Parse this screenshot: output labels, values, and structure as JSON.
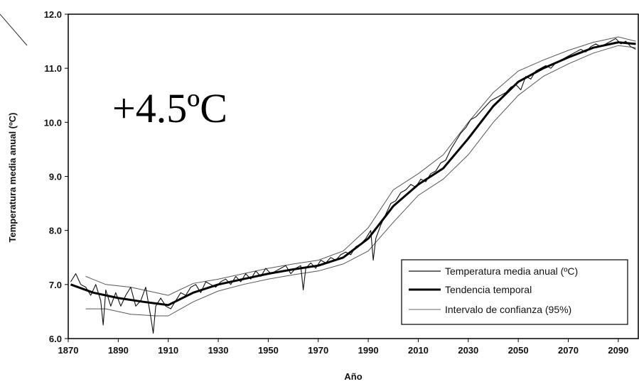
{
  "chart_data": {
    "type": "line",
    "xlabel": "Año",
    "ylabel": "Temperatura media anual (ºC)",
    "annotation": "+4.5ºC",
    "xlim": [
      1870,
      2098
    ],
    "ylim": [
      6.0,
      12.0
    ],
    "x_ticks": [
      1870,
      1890,
      1910,
      1930,
      1950,
      1970,
      1990,
      2010,
      2030,
      2050,
      2070,
      2090
    ],
    "y_ticks": [
      "6.0",
      "7.0",
      "8.0",
      "9.0",
      "10.0",
      "11.0",
      "12.0"
    ],
    "grid": false,
    "legend_position": "bottom-right",
    "series": [
      {
        "name": "Temperatura media anual (ºC)",
        "style": "annual",
        "color": "#111111",
        "x": [
          1871,
          1873,
          1875,
          1877,
          1879,
          1881,
          1883,
          1884,
          1885,
          1887,
          1889,
          1891,
          1893,
          1895,
          1897,
          1899,
          1901,
          1903,
          1904,
          1905,
          1907,
          1909,
          1911,
          1913,
          1915,
          1917,
          1919,
          1921,
          1923,
          1925,
          1927,
          1929,
          1931,
          1933,
          1935,
          1937,
          1939,
          1941,
          1943,
          1945,
          1947,
          1949,
          1951,
          1953,
          1955,
          1957,
          1959,
          1961,
          1963,
          1964,
          1965,
          1967,
          1969,
          1971,
          1973,
          1975,
          1977,
          1979,
          1981,
          1983,
          1985,
          1987,
          1989,
          1991,
          1992,
          1993,
          1995,
          1997,
          1999,
          2001,
          2003,
          2005,
          2007,
          2009,
          2011,
          2013,
          2015,
          2017,
          2019,
          2021,
          2023,
          2025,
          2027,
          2029,
          2031,
          2033,
          2035,
          2037,
          2039,
          2041,
          2043,
          2045,
          2047,
          2049,
          2051,
          2053,
          2055,
          2057,
          2059,
          2061,
          2063,
          2065,
          2067,
          2069,
          2071,
          2073,
          2075,
          2077,
          2079,
          2081,
          2083,
          2085,
          2087,
          2089,
          2091,
          2093,
          2095,
          2097
        ],
        "y": [
          7.05,
          7.2,
          7.0,
          6.95,
          6.8,
          7.0,
          6.7,
          6.25,
          6.9,
          6.6,
          6.85,
          6.6,
          6.8,
          6.95,
          6.6,
          6.7,
          6.95,
          6.4,
          6.1,
          6.6,
          6.75,
          6.6,
          6.55,
          6.7,
          6.85,
          6.8,
          6.95,
          7.0,
          6.85,
          7.05,
          7.0,
          6.95,
          7.05,
          7.1,
          7.0,
          7.15,
          7.05,
          7.2,
          7.1,
          7.25,
          7.15,
          7.3,
          7.2,
          7.25,
          7.3,
          7.35,
          7.2,
          7.3,
          7.35,
          6.9,
          7.3,
          7.4,
          7.3,
          7.45,
          7.4,
          7.5,
          7.45,
          7.55,
          7.6,
          7.55,
          7.7,
          7.75,
          7.85,
          8.0,
          7.45,
          7.85,
          8.1,
          8.3,
          8.5,
          8.55,
          8.7,
          8.75,
          8.85,
          8.8,
          8.95,
          8.9,
          9.05,
          9.1,
          9.25,
          9.3,
          9.5,
          9.65,
          9.8,
          9.9,
          10.05,
          10.1,
          10.2,
          10.3,
          10.4,
          10.45,
          10.5,
          10.55,
          10.65,
          10.7,
          10.6,
          10.85,
          10.8,
          10.95,
          11.0,
          11.05,
          11.0,
          11.1,
          11.15,
          11.2,
          11.25,
          11.3,
          11.35,
          11.3,
          11.4,
          11.45,
          11.4,
          11.45,
          11.5,
          11.55,
          11.45,
          11.5,
          11.4,
          11.35
        ]
      },
      {
        "name": "Tendencia temporal",
        "style": "trend",
        "color": "#000000",
        "x": [
          1871,
          1880,
          1890,
          1900,
          1905,
          1910,
          1920,
          1930,
          1940,
          1950,
          1960,
          1970,
          1980,
          1990,
          2000,
          2010,
          2020,
          2030,
          2040,
          2050,
          2060,
          2070,
          2080,
          2090,
          2097
        ],
        "y": [
          7.0,
          6.85,
          6.75,
          6.68,
          6.65,
          6.62,
          6.85,
          7.0,
          7.1,
          7.2,
          7.28,
          7.35,
          7.5,
          7.85,
          8.45,
          8.85,
          9.15,
          9.7,
          10.3,
          10.75,
          11.0,
          11.2,
          11.38,
          11.48,
          11.45
        ]
      },
      {
        "name": "Intervalo de confianza (95%)",
        "style": "ci",
        "color": "#555555",
        "bounds": [
          {
            "x": [
              1877,
              1885,
              1895,
              1905,
              1910,
              1920,
              1930,
              1940,
              1950,
              1960,
              1970,
              1980,
              1990,
              2000,
              2010,
              2020,
              2030,
              2040,
              2050,
              2060,
              2070,
              2080,
              2090,
              2097
            ],
            "y": [
              7.15,
              7.0,
              6.95,
              6.85,
              6.8,
              7.02,
              7.1,
              7.2,
              7.3,
              7.38,
              7.45,
              7.62,
              8.05,
              8.75,
              9.05,
              9.4,
              10.0,
              10.55,
              10.95,
              11.15,
              11.33,
              11.48,
              11.58,
              11.5
            ]
          },
          {
            "x": [
              1877,
              1885,
              1895,
              1905,
              1910,
              1920,
              1930,
              1940,
              1950,
              1960,
              1970,
              1980,
              1990,
              2000,
              2010,
              2020,
              2030,
              2040,
              2050,
              2060,
              2070,
              2080,
              2090,
              2097
            ],
            "y": [
              6.55,
              6.55,
              6.45,
              6.42,
              6.42,
              6.68,
              6.88,
              7.0,
              7.1,
              7.18,
              7.25,
              7.38,
              7.62,
              8.15,
              8.65,
              8.95,
              9.4,
              10.0,
              10.5,
              10.85,
              11.08,
              11.28,
              11.42,
              11.38
            ]
          }
        ]
      }
    ]
  }
}
